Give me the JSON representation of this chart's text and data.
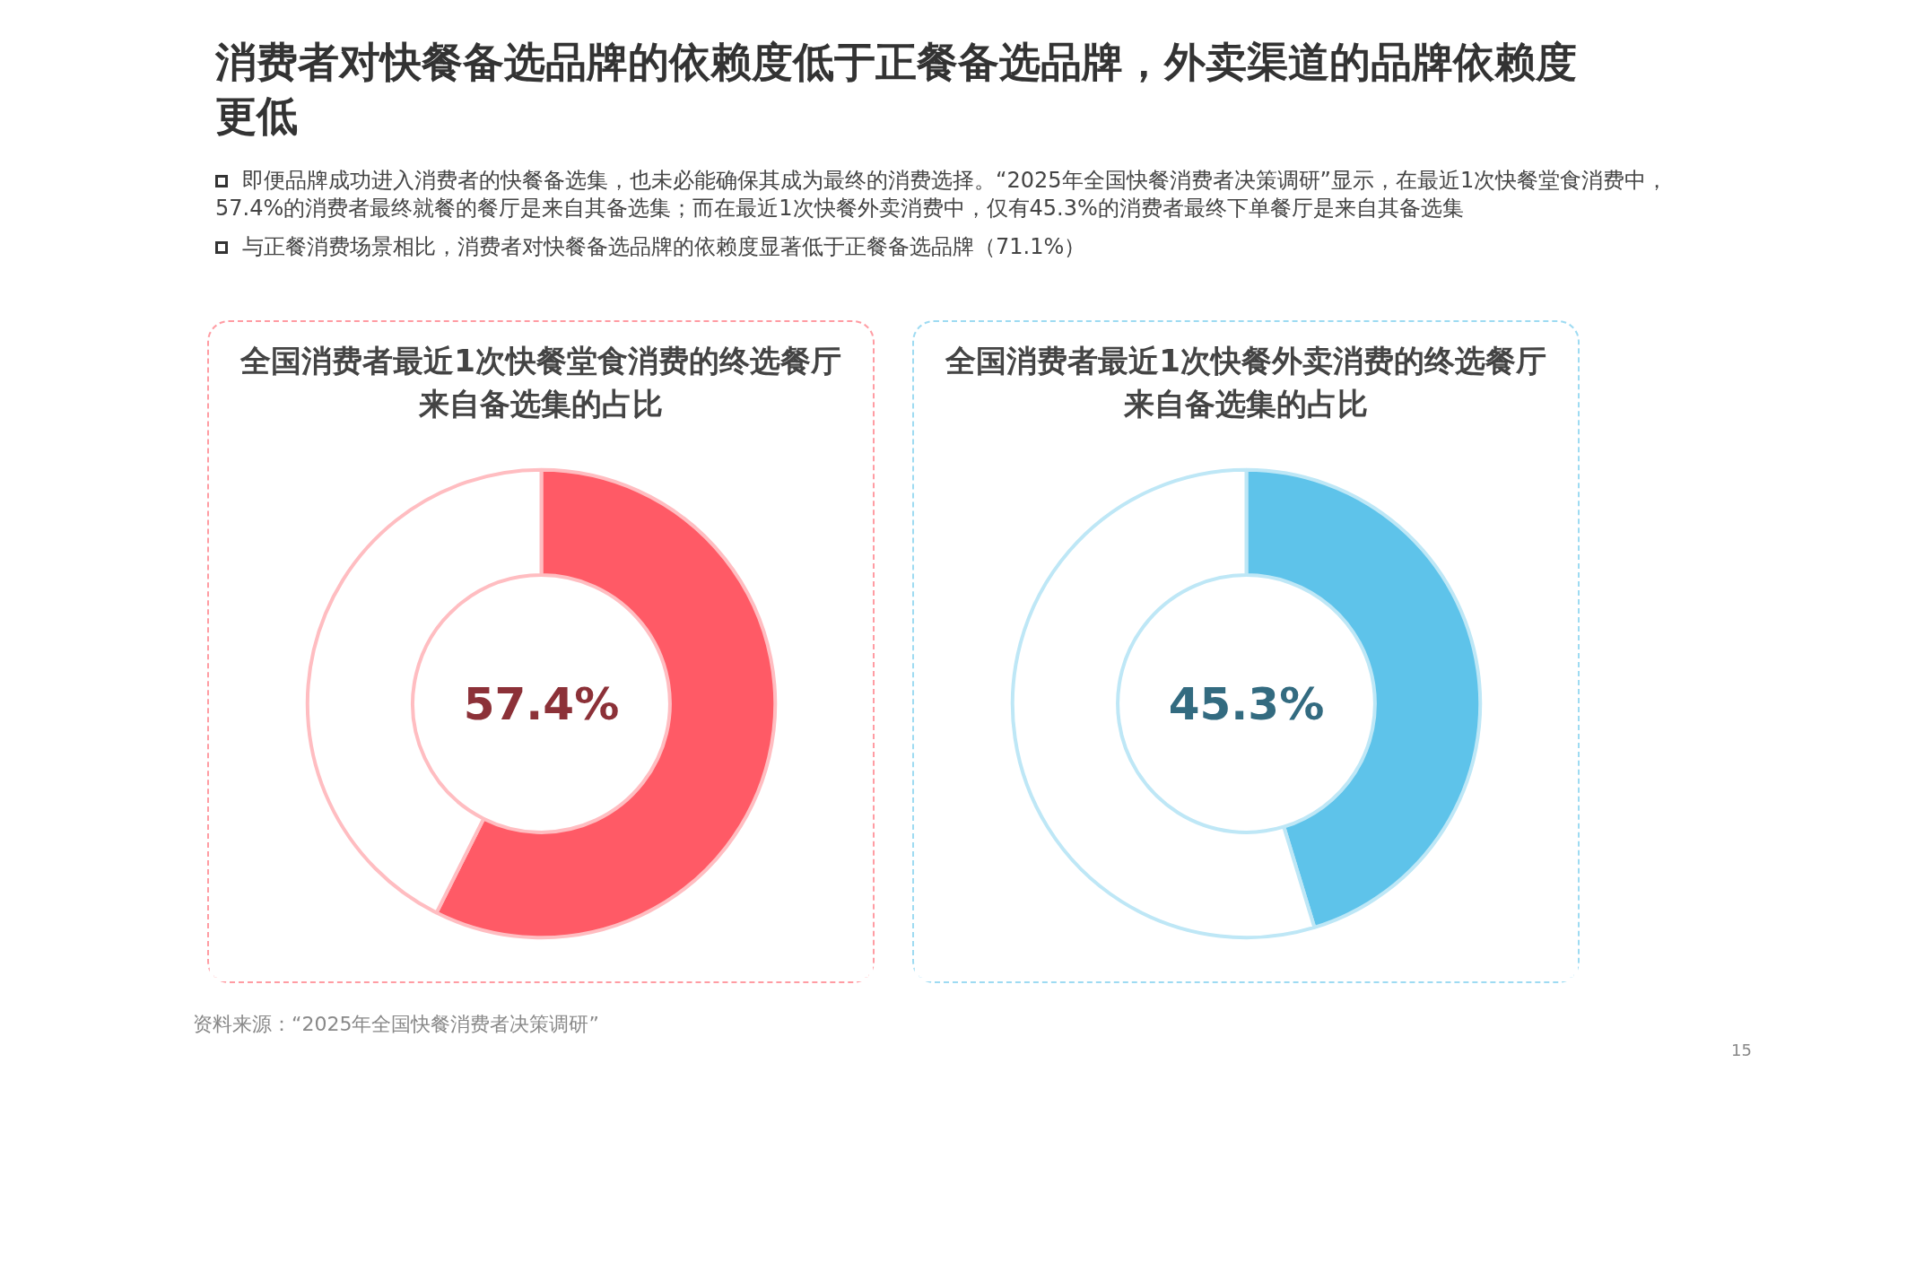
{
  "chart_data": [
    {
      "type": "other",
      "title": "消费者对快餐备选品牌的依赖度低于正餐备选品牌，外卖渠道的品牌依赖度更低",
      "annotations": [
        "即便品牌成功进入消费者的快餐备选集，也未必能确保其成为最终的消费选择。“2025年全国快餐消费者决策调研”显示，在最近1次快餐堂食消费中，57.4%的消费者最终就餐的餐厅是来自其备选集；而在最近1次快餐外卖消费中，仅有45.3%的消费者最终下单餐厅是来自其备选集",
        "与正餐消费场景相比，消费者对快餐备选品牌的依赖度显著低于正餐备选品牌（71.1%）",
        "资料来源：“2025年全国快餐消费者决策调研”",
        "15"
      ]
    },
    {
      "type": "donut",
      "title": "全国消费者最近1次快餐堂食消费的终选餐厅来自备选集的占比",
      "categories": [
        null,
        null
      ],
      "values": [
        57.4,
        42.6
      ],
      "colors": [
        "#ff5a66",
        "#ffffff"
      ],
      "value_labels": [
        "57.4%",
        null
      ]
    },
    {
      "type": "donut",
      "title": "全国消费者最近1次快餐外卖消费的终选餐厅来自备选集的占比",
      "categories": [
        null,
        null
      ],
      "values": [
        45.3,
        54.7
      ],
      "colors": [
        "#5ec3ea",
        "#ffffff"
      ],
      "value_labels": [
        "45.3%",
        null
      ]
    }
  ]
}
